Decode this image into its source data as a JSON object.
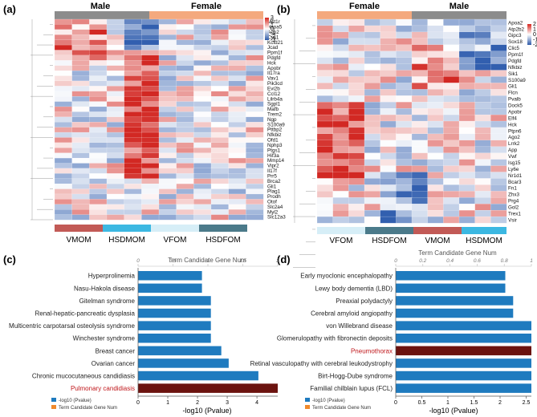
{
  "panels": {
    "a": {
      "label": "(a)",
      "top_groups": [
        "Male",
        "Female"
      ],
      "bottom_groups": [
        "VMOM",
        "HSDMOM",
        "VFOM",
        "HSDFOM"
      ],
      "legend_ticks": [
        "3",
        "2",
        "1",
        "0",
        "-1",
        "-2",
        "-3"
      ],
      "genes": [
        "Mst1r",
        "Hspa5",
        "Ago2",
        "Cys1",
        "Kctd21",
        "Jcad",
        "Ppm1f",
        "Pdgfd",
        "Hck",
        "Apobr",
        "Il17ra",
        "Vav1",
        "Pik3cd",
        "Evi2b",
        "Ccl12",
        "Lilrb4a",
        "Sgpl1",
        "Mafb",
        "Trem2",
        "Ngp",
        "S100a9",
        "Pttbp2",
        "Nfkbiz",
        "Ofd1",
        "Nphp3",
        "Ptgs1",
        "Hif3a",
        "Mmp14",
        "Vipr2",
        "Il17f",
        "Prr5",
        "Brca2",
        "Gli1",
        "Plag1",
        "Prodh",
        "Otof",
        "Slc2a4",
        "Myl2",
        "Slc12a3"
      ]
    },
    "b": {
      "label": "(b)",
      "top_groups": [
        "Female",
        "Male"
      ],
      "bottom_groups": [
        "VFOM",
        "HSDFOM",
        "VMOM",
        "HSDMOM"
      ],
      "legend_ticks": [
        "2",
        "1",
        "0",
        "-1",
        "-2"
      ],
      "genes": [
        "Apoa2",
        "Atp2b2",
        "Gipc3",
        "Sox18",
        "Clic5",
        "Ppm1f",
        "Pdgfd",
        "Nfkbiz",
        "Sik1",
        "S100a9",
        "Gli1",
        "Flcn",
        "Pvalb",
        "Dock5",
        "Apobr",
        "Elf4",
        "Hck",
        "Ptpn6",
        "Ago2",
        "Lrrk2",
        "App",
        "Vwf",
        "Isg15",
        "Ly6e",
        "Nr1d1",
        "Bcar3",
        "Fn1",
        "Zhx3",
        "Prg4",
        "Gol2",
        "Trex1",
        "Vsir"
      ]
    },
    "c": {
      "label": "(c)",
      "top_axis_title": "Term Candidate Gene Num",
      "top_ticks": [
        "0",
        "0.5",
        "1",
        "1.5",
        "2"
      ],
      "bottom_ticks": [
        "0",
        "1",
        "2",
        "3",
        "4"
      ],
      "xlabel": "-log10  (Pvalue)",
      "legend": [
        "-log10 (Pvalue)",
        "Term Candidate Gene Num"
      ]
    },
    "d": {
      "label": "(d)",
      "top_axis_title": "Term Candidate Gene Num",
      "top_ticks": [
        "0",
        "0.2",
        "0.4",
        "0.6",
        "0.8",
        "1"
      ],
      "bottom_ticks": [
        "0",
        "0.5",
        "1",
        "1.5",
        "2",
        "2.5"
      ],
      "xlabel": "-log10  (Pvalue)",
      "legend": [
        "-log10 (Pvalue)",
        "Term Candidate Gene Num"
      ]
    }
  },
  "colors": {
    "bar": "#1f7bbf",
    "highlight": "#6b130f",
    "male": "#8c8c8c",
    "female": "#f4a97e",
    "g1": "#c25a56",
    "g2": "#3cb8e2",
    "g3": "#d6eef7",
    "g4": "#4b7a8a",
    "legend_orange": "#f08a2c"
  },
  "chart_data": [
    {
      "panel": "c",
      "type": "bar",
      "orientation": "horizontal",
      "categories": [
        "Hyperprolinemia",
        "Nasu-Hakola disease",
        "Gitelman syndrome",
        "Renal-hepatic-pancreatic  dysplasia",
        "Multicentric carpotarsal osteolysis syndrome",
        "Winchester syndrome",
        "Breast cancer",
        "Ovarian cancer",
        "Chronic mucocutaneous candidiasis",
        "Pulmonary candidiasis"
      ],
      "values": [
        2.15,
        2.15,
        2.45,
        2.45,
        2.45,
        2.45,
        2.8,
        3.05,
        4.05,
        4.7
      ],
      "highlight": [
        "Pulmonary candidiasis"
      ],
      "xlim": [
        0,
        4.7
      ],
      "xlabel": "-log10  (Pvalue)"
    },
    {
      "panel": "d",
      "type": "bar",
      "orientation": "horizontal",
      "categories": [
        "Early myoclonic encephalopathy",
        "Lewy body dementia (LBD)",
        "Preaxial polydactyly",
        "Cerebral  amyloid angiopathy",
        "von Willebrand disease",
        "Glomerulopathy with fibronectin deposits",
        "Pneumothorax",
        "Retinal vasculopathy with cerebral leukodystrophy",
        "Birt-Hogg-Dube  syndrome",
        "Familial chilblain lupus (FCL)"
      ],
      "values": [
        2.1,
        2.1,
        2.25,
        2.25,
        2.6,
        2.6,
        2.6,
        2.6,
        2.6,
        2.6
      ],
      "highlight": [
        "Pneumothorax"
      ],
      "xlim": [
        0,
        2.6
      ],
      "xlabel": "-log10  (Pvalue)"
    }
  ]
}
